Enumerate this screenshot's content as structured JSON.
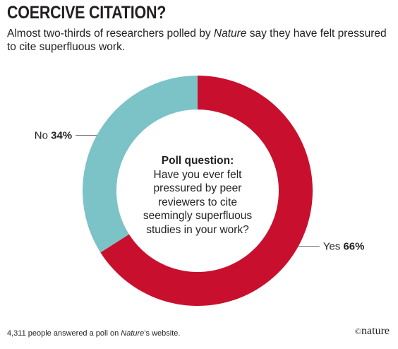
{
  "header": {
    "title": "COERCIVE CITATION?",
    "subtitle_pre": "Almost two-thirds of researchers polled by ",
    "subtitle_em": "Nature",
    "subtitle_post": " say they have felt pressured to cite superfluous work."
  },
  "center_text": {
    "heading": "Poll question:",
    "body": "Have you ever felt pressured by peer reviewers to cite seemingly superfluous studies in your work?"
  },
  "footer": {
    "pre": "4,311 people answered a poll on ",
    "em": "Nature",
    "post": "’s website."
  },
  "brand": {
    "symbol": "©",
    "name": "nature"
  },
  "chart_data": {
    "type": "pie",
    "donut": true,
    "slices": [
      {
        "label": "Yes",
        "value": 66,
        "display": "66%",
        "color": "#c8102e"
      },
      {
        "label": "No",
        "value": 34,
        "display": "34%",
        "color": "#7cc3c8"
      }
    ]
  }
}
